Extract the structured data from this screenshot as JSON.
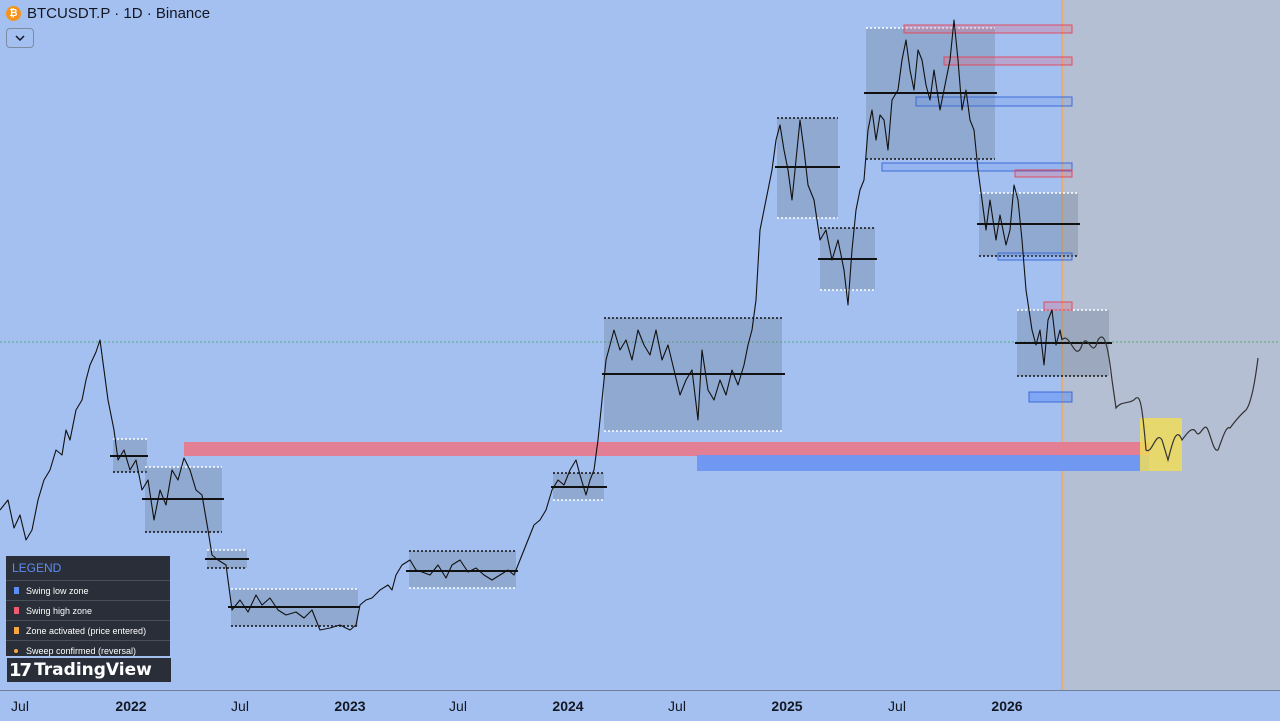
{
  "header": {
    "coin_symbol": "₿",
    "symbol_label": "BTCUSDT.P · 1D · Binance",
    "collapse_icon": "chevron-down-icon"
  },
  "time_axis": {
    "ticks": [
      {
        "label": "Jul",
        "year": false
      },
      {
        "label": "2022",
        "year": true
      },
      {
        "label": "Jul",
        "year": false
      },
      {
        "label": "2023",
        "year": true
      },
      {
        "label": "Jul",
        "year": false
      },
      {
        "label": "2024",
        "year": true
      },
      {
        "label": "Jul",
        "year": false
      },
      {
        "label": "2025",
        "year": true
      },
      {
        "label": "Jul",
        "year": false
      },
      {
        "label": "2026",
        "year": true
      }
    ]
  },
  "legend": {
    "title": "LEGEND",
    "items": [
      {
        "label": "Swing low zone",
        "color": "#5b8df6",
        "marker": "square"
      },
      {
        "label": "Swing high zone",
        "color": "#f05a6e",
        "marker": "square"
      },
      {
        "label": "Zone activated (price entered)",
        "color": "#f7a640",
        "marker": "square"
      },
      {
        "label": "Sweep confirmed (reversal)",
        "color": "#f7a640",
        "marker": "dot"
      }
    ]
  },
  "branding": {
    "logo_mark": "17",
    "logo_text": "TradingView"
  },
  "colors": {
    "background": "#a4c0f0",
    "forecast_bg": "#b5bfd3",
    "swing_low": "#5b8df6",
    "swing_high": "#f05a6e",
    "activation": "#f5e05a",
    "current_line": "#f7a640",
    "price_line": "#2ea84f"
  }
}
